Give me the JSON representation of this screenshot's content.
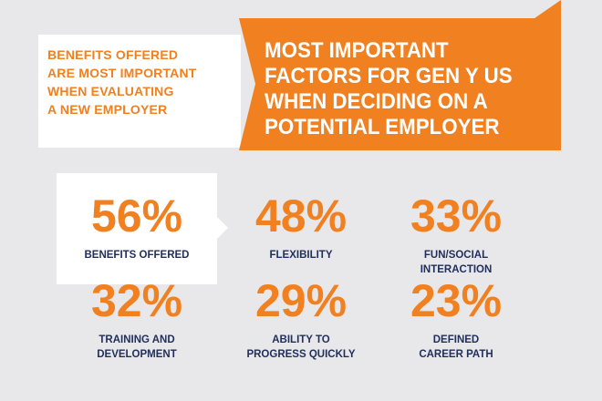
{
  "intro": {
    "lines": [
      "BENEFITS OFFERED",
      "ARE MOST IMPORTANT",
      "WHEN EVALUATING",
      "A NEW EMPLOYER"
    ]
  },
  "headline": {
    "lines": [
      "MOST IMPORTANT",
      "FACTORS FOR GEN Y US",
      "WHEN DECIDING ON A",
      "POTENTIAL EMPLOYER"
    ]
  },
  "stats": [
    {
      "value": "56%",
      "label": [
        "BENEFITS OFFERED"
      ]
    },
    {
      "value": "48%",
      "label": [
        "FLEXIBILITY"
      ]
    },
    {
      "value": "33%",
      "label": [
        "FUN/SOCIAL",
        "INTERACTION"
      ]
    },
    {
      "value": "32%",
      "label": [
        "TRAINING AND",
        "DEVELOPMENT"
      ]
    },
    {
      "value": "29%",
      "label": [
        "ABILITY TO",
        "PROGRESS QUICKLY"
      ]
    },
    {
      "value": "23%",
      "label": [
        "DEFINED",
        "CAREER PATH"
      ]
    }
  ]
}
